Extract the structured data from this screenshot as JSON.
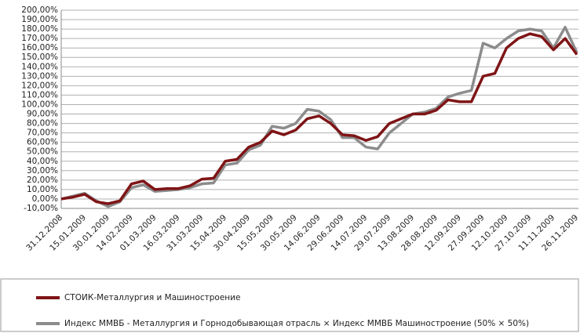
{
  "chart_data": {
    "type": "line",
    "categories": [
      "31.12.2008",
      null,
      "15.01.2009",
      null,
      "30.01.2009",
      null,
      "14.02.2009",
      null,
      "01.03.2009",
      null,
      "16.03.2009",
      null,
      "31.03.2009",
      null,
      "15.04.2009",
      null,
      "30.04.2009",
      null,
      "15.05.2009",
      null,
      "30.05.2009",
      null,
      "14.06.2009",
      null,
      "29.06.2009",
      null,
      "14.07.2009",
      null,
      "29.07.2009",
      null,
      "13.08.2009",
      null,
      "28.08.2009",
      null,
      "12.09.2009",
      null,
      "27.09.2009",
      null,
      "12.10.2009",
      null,
      "27.10.2009",
      null,
      "11.11.2009",
      null,
      "26.11.2009"
    ],
    "series": [
      {
        "name": "СТОИК-Металлургия и Машиностроение",
        "color": "#7f1416",
        "values": [
          0,
          2,
          5,
          -3,
          -5,
          -2,
          16,
          19,
          10,
          11,
          11,
          14,
          21,
          22,
          40,
          42,
          55,
          60,
          72,
          68,
          73,
          85,
          88,
          80,
          68,
          67,
          62,
          66,
          80,
          85,
          90,
          90,
          94,
          105,
          103,
          103,
          130,
          133,
          160,
          170,
          175,
          172,
          158,
          170,
          153
        ]
      },
      {
        "name": "Индекс ММВБ - Металлургия и Горнодобывающая отрасль × Индекс ММВБ Машиностроение (50% × 50%)",
        "color": "#8c8c8c",
        "values": [
          0,
          3,
          6,
          -2,
          -8,
          -3,
          12,
          15,
          8,
          9,
          10,
          12,
          16,
          17,
          36,
          38,
          52,
          57,
          77,
          75,
          80,
          95,
          93,
          84,
          65,
          65,
          55,
          53,
          70,
          80,
          90,
          92,
          96,
          108,
          112,
          115,
          165,
          160,
          170,
          178,
          180,
          178,
          160,
          182,
          155
        ]
      }
    ],
    "ylim": [
      -10,
      200
    ],
    "yticks": [
      {
        "value": -10,
        "label": "-10,00%"
      },
      {
        "value": 0,
        "label": "0,00%"
      },
      {
        "value": 10,
        "label": "10,00%"
      },
      {
        "value": 20,
        "label": "20,00%"
      },
      {
        "value": 30,
        "label": "30,00%"
      },
      {
        "value": 40,
        "label": "40,00%"
      },
      {
        "value": 50,
        "label": "50,00%"
      },
      {
        "value": 60,
        "label": "60,00%"
      },
      {
        "value": 70,
        "label": "70,00%"
      },
      {
        "value": 80,
        "label": "80,00%"
      },
      {
        "value": 90,
        "label": "90,00%"
      },
      {
        "value": 100,
        "label": "100,00%"
      },
      {
        "value": 110,
        "label": "110,00%"
      },
      {
        "value": 120,
        "label": "120,00%"
      },
      {
        "value": 130,
        "label": "130,00%"
      },
      {
        "value": 140,
        "label": "140,00%"
      },
      {
        "value": 150,
        "label": "150,00%"
      },
      {
        "value": 160,
        "label": "160,00%"
      },
      {
        "value": 170,
        "label": "170,00%"
      },
      {
        "value": 180,
        "label": "180,00%"
      },
      {
        "value": 190,
        "label": "190,00%"
      },
      {
        "value": 200,
        "label": "200,00%"
      }
    ],
    "grid": true
  }
}
